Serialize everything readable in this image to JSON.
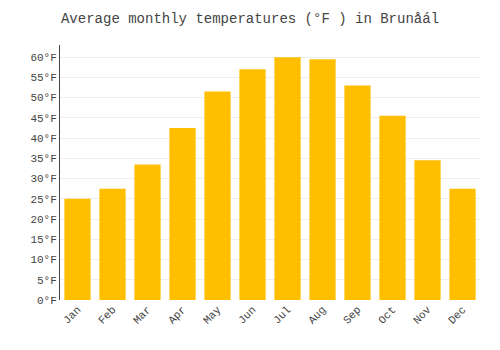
{
  "chart_data": {
    "type": "bar",
    "title": "Average monthly temperatures (°F ) in Brunåál",
    "categories": [
      "Jan",
      "Feb",
      "Mar",
      "Apr",
      "May",
      "Jun",
      "Jul",
      "Aug",
      "Sep",
      "Oct",
      "Nov",
      "Dec"
    ],
    "values": [
      25,
      27.5,
      33.5,
      42.5,
      51.5,
      57,
      60,
      59.5,
      53,
      45.5,
      34.5,
      27.5
    ],
    "color": "#FFBF00",
    "ylim": [
      0,
      63
    ],
    "yticks": [
      {
        "value": 0,
        "label": "0°F"
      },
      {
        "value": 5,
        "label": "5°F"
      },
      {
        "value": 10,
        "label": "10°F"
      },
      {
        "value": 15,
        "label": "15°F"
      },
      {
        "value": 20,
        "label": "20°F"
      },
      {
        "value": 25,
        "label": "25°F"
      },
      {
        "value": 30,
        "label": "30°F"
      },
      {
        "value": 35,
        "label": "35°F"
      },
      {
        "value": 40,
        "label": "40°F"
      },
      {
        "value": 45,
        "label": "45°F"
      },
      {
        "value": 50,
        "label": "50°F"
      },
      {
        "value": 55,
        "label": "55°F"
      },
      {
        "value": 60,
        "label": "60°F"
      }
    ],
    "grid": true
  }
}
